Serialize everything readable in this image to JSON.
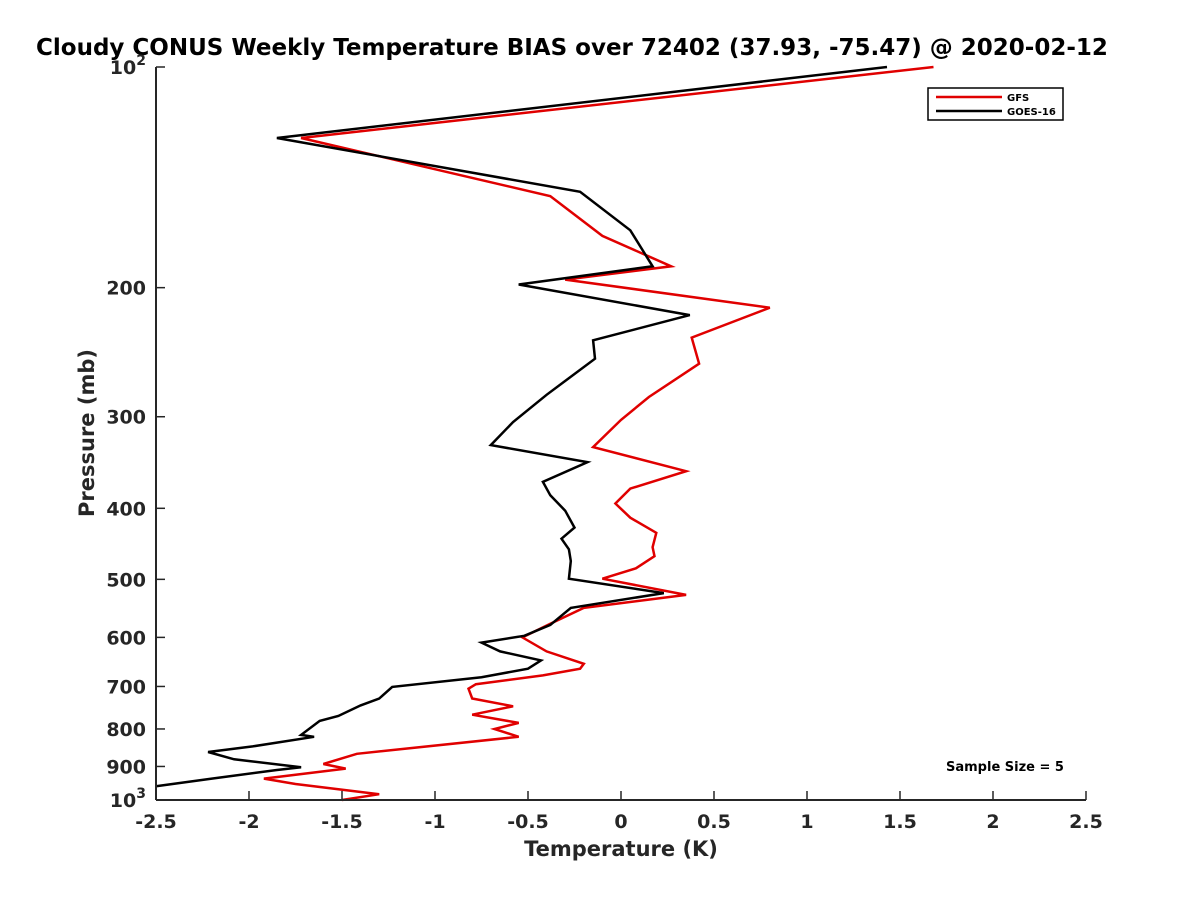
{
  "chart_data": {
    "type": "line",
    "title": "Cloudy CONUS Weekly Temperature BIAS over 72402 (37.93, -75.47) @ 2020-02-12",
    "xlabel": "Temperature (K)",
    "ylabel": "Pressure (mb)",
    "xlim": [
      -2.5,
      2.5
    ],
    "ylim": [
      1000,
      100
    ],
    "yscale": "log",
    "y_reversed": true,
    "grid": false,
    "legend_position": "top-right",
    "x_ticks": [
      "-2.5",
      "-2",
      "-1.5",
      "-1",
      "-0.5",
      "0",
      "0.5",
      "1",
      "1.5",
      "2",
      "2.5"
    ],
    "y_ticks": [
      {
        "value": 100,
        "base": "10",
        "exp": "2"
      },
      {
        "value": 200,
        "label": "200"
      },
      {
        "value": 300,
        "label": "300"
      },
      {
        "value": 400,
        "label": "400"
      },
      {
        "value": 500,
        "label": "500"
      },
      {
        "value": 600,
        "label": "600"
      },
      {
        "value": 700,
        "label": "700"
      },
      {
        "value": 800,
        "label": "800"
      },
      {
        "value": 900,
        "label": "900"
      },
      {
        "value": 1000,
        "base": "10",
        "exp": "3"
      }
    ],
    "series": [
      {
        "name": "GFS",
        "color": "#e00000",
        "points": [
          [
            1.68,
            100
          ],
          [
            -1.72,
            125
          ],
          [
            -0.38,
            150
          ],
          [
            -0.1,
            170
          ],
          [
            0.27,
            187
          ],
          [
            -0.3,
            195
          ],
          [
            0.8,
            213
          ],
          [
            0.38,
            234
          ],
          [
            0.42,
            254
          ],
          [
            0.15,
            282
          ],
          [
            0.0,
            303
          ],
          [
            -0.15,
            330
          ],
          [
            0.35,
            356
          ],
          [
            0.05,
            376
          ],
          [
            -0.03,
            394
          ],
          [
            0.05,
            412
          ],
          [
            0.19,
            432
          ],
          [
            0.17,
            452
          ],
          [
            0.18,
            465
          ],
          [
            0.08,
            483
          ],
          [
            -0.1,
            499
          ],
          [
            0.35,
            525
          ],
          [
            -0.2,
            547
          ],
          [
            -0.38,
            575
          ],
          [
            -0.53,
            600
          ],
          [
            -0.4,
            627
          ],
          [
            -0.2,
            652
          ],
          [
            -0.22,
            662
          ],
          [
            -0.42,
            676
          ],
          [
            -0.78,
            695
          ],
          [
            -0.82,
            705
          ],
          [
            -0.8,
            727
          ],
          [
            -0.58,
            745
          ],
          [
            -0.8,
            765
          ],
          [
            -0.55,
            785
          ],
          [
            -0.68,
            800
          ],
          [
            -0.55,
            820
          ],
          [
            -1.42,
            865
          ],
          [
            -1.6,
            893
          ],
          [
            -1.48,
            906
          ],
          [
            -1.92,
            935
          ],
          [
            -1.75,
            951
          ],
          [
            -1.3,
            982
          ],
          [
            -1.5,
            1000
          ]
        ]
      },
      {
        "name": "GOES-16",
        "color": "#000000",
        "points": [
          [
            1.43,
            100
          ],
          [
            -1.85,
            125
          ],
          [
            -0.22,
            148
          ],
          [
            0.05,
            167
          ],
          [
            0.17,
            187
          ],
          [
            -0.55,
            198
          ],
          [
            0.37,
            218
          ],
          [
            -0.15,
            236
          ],
          [
            -0.14,
            250
          ],
          [
            -0.4,
            280
          ],
          [
            -0.58,
            305
          ],
          [
            -0.7,
            328
          ],
          [
            -0.18,
            346
          ],
          [
            -0.42,
            368
          ],
          [
            -0.38,
            384
          ],
          [
            -0.3,
            403
          ],
          [
            -0.25,
            425
          ],
          [
            -0.32,
            440
          ],
          [
            -0.28,
            455
          ],
          [
            -0.27,
            472
          ],
          [
            -0.28,
            499
          ],
          [
            0.23,
            522
          ],
          [
            -0.27,
            547
          ],
          [
            -0.38,
            577
          ],
          [
            -0.52,
            597
          ],
          [
            -0.75,
            610
          ],
          [
            -0.65,
            627
          ],
          [
            -0.43,
            645
          ],
          [
            -0.5,
            662
          ],
          [
            -0.75,
            680
          ],
          [
            -1.23,
            701
          ],
          [
            -1.3,
            727
          ],
          [
            -1.4,
            743
          ],
          [
            -1.52,
            768
          ],
          [
            -1.62,
            780
          ],
          [
            -1.72,
            815
          ],
          [
            -1.65,
            820
          ],
          [
            -1.98,
            845
          ],
          [
            -2.22,
            860
          ],
          [
            -2.08,
            880
          ],
          [
            -1.72,
            902
          ],
          [
            -1.85,
            910
          ],
          [
            -2.2,
            935
          ],
          [
            -2.5,
            958
          ]
        ]
      }
    ],
    "annotations": [
      "Sample Size = 5"
    ]
  }
}
